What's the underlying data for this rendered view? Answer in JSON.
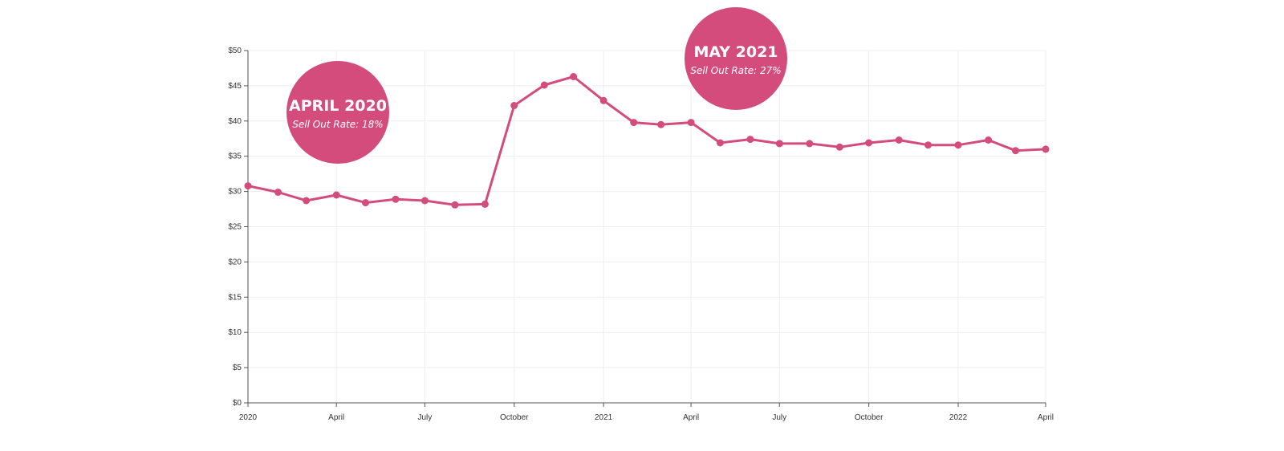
{
  "colors": {
    "series": "#d44c7c",
    "bubble": "#d44c7c",
    "grid": "#eeeeee",
    "axis": "#555555",
    "text": "#333333"
  },
  "chart_data": {
    "type": "line",
    "title": "",
    "xlabel": "",
    "ylabel": "",
    "grid": true,
    "ylim": [
      0,
      50
    ],
    "y_ticks": [
      "$0",
      "$5",
      "$10",
      "$15",
      "$20",
      "$25",
      "$30",
      "$35",
      "$40",
      "$45",
      "$50"
    ],
    "y_tick_values": [
      0,
      5,
      10,
      15,
      20,
      25,
      30,
      35,
      40,
      45,
      50
    ],
    "x_ticks": [
      "2020",
      "April",
      "July",
      "October",
      "2021",
      "April",
      "July",
      "October",
      "2022",
      "April"
    ],
    "x_tick_dates": [
      "2020-01",
      "2020-04",
      "2020-07",
      "2020-10",
      "2021-01",
      "2021-04",
      "2021-07",
      "2021-10",
      "2022-01",
      "2022-04"
    ],
    "series": [
      {
        "x": [
          "2020-01",
          "2020-02",
          "2020-03",
          "2020-04",
          "2020-05",
          "2020-06",
          "2020-07",
          "2020-08",
          "2020-09",
          "2020-10",
          "2020-11",
          "2020-12",
          "2021-01",
          "2021-02",
          "2021-03",
          "2021-04",
          "2021-05",
          "2021-06",
          "2021-07",
          "2021-08",
          "2021-09",
          "2021-10",
          "2021-11",
          "2021-12",
          "2022-01",
          "2022-02",
          "2022-03",
          "2022-04"
        ],
        "values": [
          30.8,
          29.9,
          28.7,
          29.5,
          28.4,
          28.9,
          28.7,
          28.1,
          28.2,
          42.2,
          45.1,
          46.3,
          42.9,
          39.8,
          39.5,
          39.8,
          36.9,
          37.4,
          36.8,
          36.8,
          36.3,
          36.9,
          37.3,
          36.6,
          36.6,
          37.3,
          35.8,
          36.0
        ]
      }
    ],
    "annotations": [
      {
        "title": "APRIL 2020",
        "subtitle": "Sell Out Rate: 18%"
      },
      {
        "title": "MAY 2021",
        "subtitle": "Sell Out Rate: 27%"
      }
    ]
  }
}
